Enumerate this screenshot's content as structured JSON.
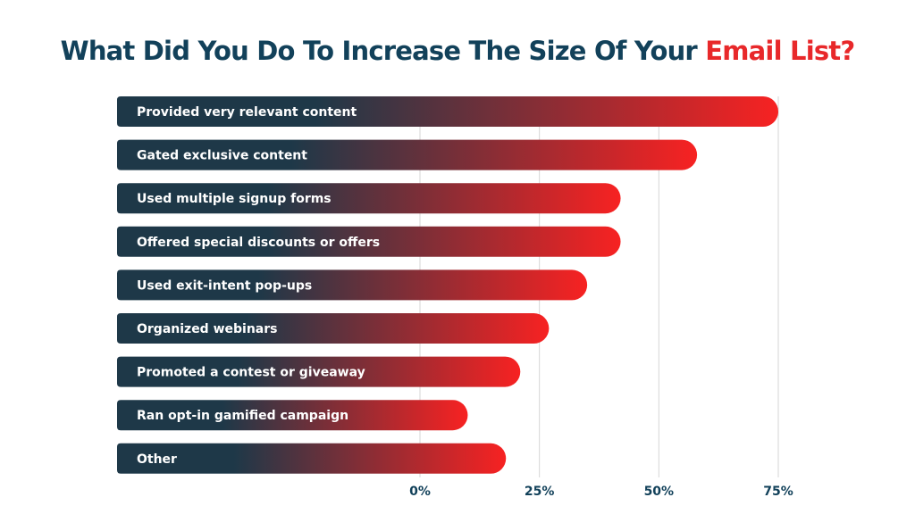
{
  "title": {
    "main": "What Did You Do To Increase The Size Of Your ",
    "highlight": "Email List?"
  },
  "colors": {
    "title": "#12415a",
    "highlight": "#e8282a",
    "bar_start": "#1e3848",
    "bar_end": "#f72222",
    "grid": "#d6d6d6",
    "tick_label": "#12415a"
  },
  "chart_data": {
    "type": "bar",
    "orientation": "horizontal",
    "title": "What Did You Do To Increase The Size Of Your Email List?",
    "categories": [
      "Provided very relevant content",
      "Gated exclusive content",
      "Used multiple signup forms",
      "Offered special discounts or offers",
      "Used exit-intent pop-ups",
      "Organized webinars",
      "Promoted a contest or giveaway",
      "Ran opt-in gamified campaign",
      "Other"
    ],
    "values": [
      75,
      58,
      42,
      42,
      35,
      27,
      21,
      10,
      18
    ],
    "xlim": [
      0,
      75
    ],
    "xticks": [
      0,
      25,
      50,
      75
    ],
    "xtick_labels": [
      "0%",
      "25%",
      "50%",
      "75%"
    ],
    "grid": true,
    "xlabel": "",
    "ylabel": ""
  }
}
